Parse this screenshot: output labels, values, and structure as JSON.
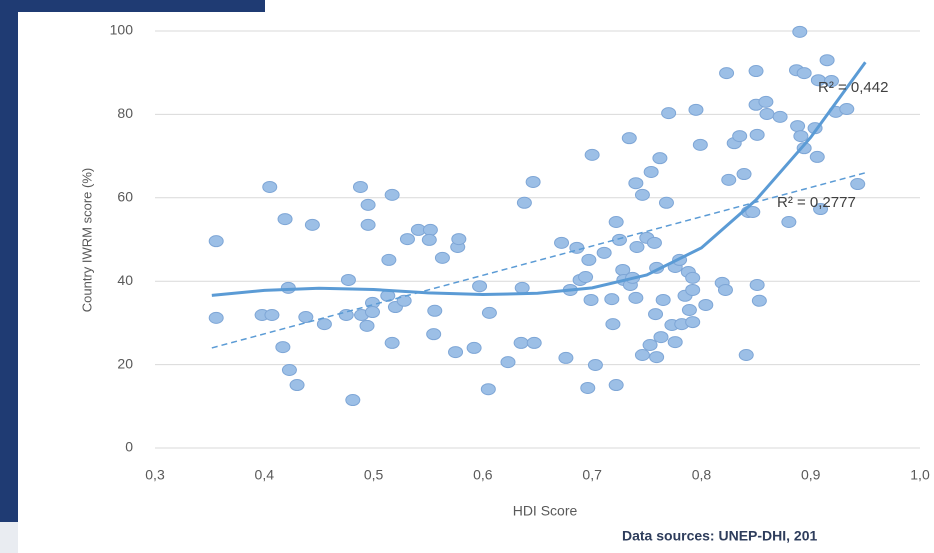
{
  "chart_data": {
    "type": "scatter",
    "xlabel": "HDI Score",
    "ylabel": "Country IWRM score (%)",
    "source": "Data sources: UNEP-DHI, 201",
    "xlim": [
      0.3,
      1.0
    ],
    "xticks": [
      {
        "value": 0.3,
        "label": "0,3"
      },
      {
        "value": 0.4,
        "label": "0,4"
      },
      {
        "value": 0.5,
        "label": "0,5"
      },
      {
        "value": 0.6,
        "label": "0,6"
      },
      {
        "value": 0.7,
        "label": "0,7"
      },
      {
        "value": 0.8,
        "label": "0,8"
      },
      {
        "value": 0.9,
        "label": "0,9"
      },
      {
        "value": 1.0,
        "label": "1,0"
      }
    ],
    "ylim": [
      0,
      100
    ],
    "yticks": [
      0,
      20,
      40,
      60,
      80,
      100
    ],
    "grid": true,
    "points": {
      "color": "#9cbfe6",
      "x": [
        0.356,
        0.356,
        0.405,
        0.398,
        0.407,
        0.419,
        0.422,
        0.417,
        0.423,
        0.43,
        0.438,
        0.444,
        0.455,
        0.477,
        0.475,
        0.481,
        0.488,
        0.489,
        0.495,
        0.495,
        0.494,
        0.499,
        0.499,
        0.513,
        0.514,
        0.517,
        0.517,
        0.52,
        0.528,
        0.531,
        0.541,
        0.552,
        0.551,
        0.556,
        0.555,
        0.563,
        0.577,
        0.578,
        0.575,
        0.592,
        0.597,
        0.606,
        0.605,
        0.623,
        0.635,
        0.636,
        0.638,
        0.647,
        0.646,
        0.672,
        0.676,
        0.68,
        0.686,
        0.689,
        0.694,
        0.696,
        0.697,
        0.7,
        0.699,
        0.703,
        0.711,
        0.718,
        0.719,
        0.722,
        0.722,
        0.725,
        0.728,
        0.729,
        0.735,
        0.737,
        0.734,
        0.74,
        0.74,
        0.741,
        0.746,
        0.746,
        0.75,
        0.753,
        0.754,
        0.757,
        0.758,
        0.759,
        0.762,
        0.759,
        0.763,
        0.765,
        0.768,
        0.77,
        0.773,
        0.776,
        0.776,
        0.78,
        0.782,
        0.785,
        0.788,
        0.789,
        0.792,
        0.792,
        0.792,
        0.795,
        0.799,
        0.804,
        0.819,
        0.822,
        0.823,
        0.825,
        0.83,
        0.835,
        0.839,
        0.841,
        0.843,
        0.847,
        0.85,
        0.85,
        0.851,
        0.851,
        0.853,
        0.859,
        0.86,
        0.872,
        0.88,
        0.887,
        0.888,
        0.89,
        0.891,
        0.894,
        0.894,
        0.904,
        0.906,
        0.907,
        0.909,
        0.915,
        0.919,
        0.923,
        0.933,
        0.943
      ],
      "values": [
        49.6,
        31.2,
        62.6,
        31.9,
        31.9,
        54.9,
        38.4,
        24.2,
        18.7,
        15.1,
        31.4,
        53.5,
        29.7,
        40.3,
        31.9,
        11.5,
        62.6,
        31.9,
        58.3,
        53.5,
        29.3,
        34.8,
        32.6,
        36.5,
        45.1,
        60.7,
        25.2,
        33.8,
        35.3,
        50.1,
        52.3,
        52.3,
        49.9,
        32.9,
        27.3,
        45.6,
        48.2,
        50.1,
        23.0,
        24.0,
        38.8,
        32.4,
        14.1,
        20.6,
        25.2,
        38.4,
        58.8,
        25.2,
        63.8,
        49.2,
        21.6,
        37.9,
        48.0,
        40.3,
        41.0,
        14.4,
        45.1,
        70.3,
        35.5,
        19.9,
        46.8,
        35.7,
        29.7,
        15.1,
        54.2,
        49.9,
        42.7,
        40.3,
        39.1,
        40.8,
        74.3,
        36.0,
        63.5,
        48.2,
        22.3,
        60.7,
        50.4,
        24.7,
        66.2,
        49.2,
        32.1,
        43.2,
        69.5,
        21.8,
        26.6,
        35.5,
        58.8,
        80.3,
        29.5,
        43.4,
        25.4,
        45.1,
        29.7,
        36.5,
        42.2,
        33.1,
        30.2,
        37.9,
        40.8,
        81.1,
        72.7,
        34.3,
        39.6,
        37.9,
        89.9,
        64.3,
        73.1,
        74.8,
        65.7,
        22.3,
        56.6,
        56.6,
        90.4,
        82.3,
        39.1,
        75.1,
        35.3,
        83.0,
        80.1,
        79.4,
        54.2,
        90.6,
        77.2,
        99.8,
        74.8,
        71.9,
        89.9,
        76.7,
        69.8,
        88.2,
        57.3,
        93.0,
        88.0,
        80.6,
        81.3,
        63.3
      ]
    },
    "trendlines": [
      {
        "color": "#5b9bd5",
        "dashed": false,
        "label": "R² = 0,442",
        "x": [
          0.352,
          0.4,
          0.45,
          0.5,
          0.55,
          0.6,
          0.65,
          0.7,
          0.75,
          0.8,
          0.85,
          0.9,
          0.95
        ],
        "values": [
          36.6,
          37.8,
          38.3,
          38.0,
          37.2,
          36.8,
          37.1,
          38.4,
          41.5,
          48.0,
          59.5,
          74.5,
          92.5
        ]
      },
      {
        "color": "#5b9bd5",
        "dashed": true,
        "label": "R² = 0,2777",
        "x": [
          0.352,
          0.95
        ],
        "values": [
          24.0,
          66.0
        ]
      }
    ]
  }
}
